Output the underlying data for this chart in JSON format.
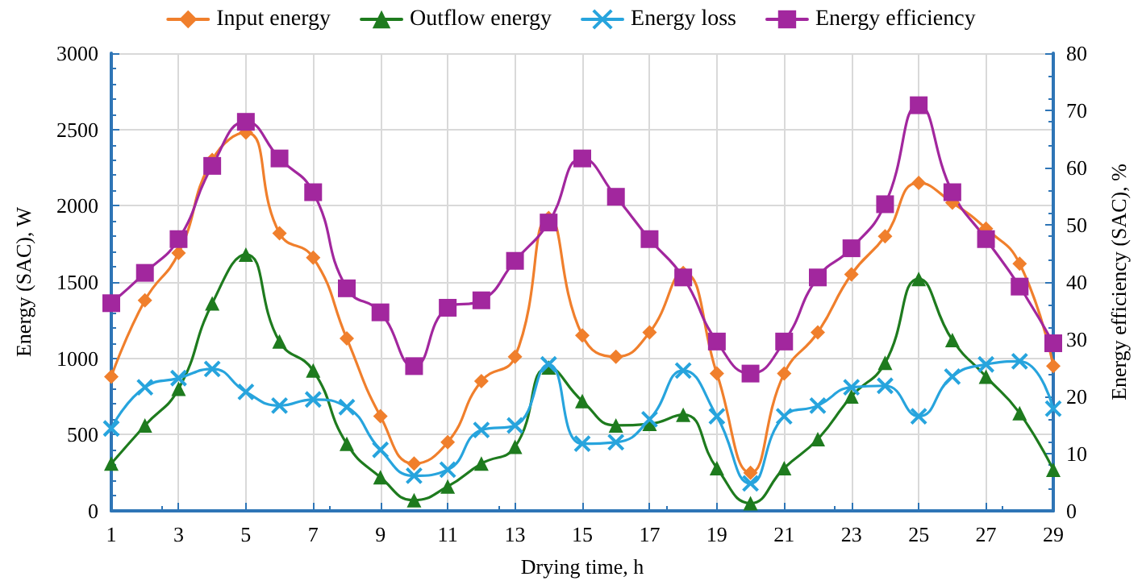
{
  "chart_data": {
    "type": "line",
    "xlabel": "Drying time, h",
    "ylabel": "Energy (SAC), W",
    "y2label": "Energy efficiency (SAC), %",
    "x": [
      1,
      2,
      3,
      4,
      5,
      6,
      7,
      8,
      9,
      10,
      11,
      12,
      13,
      14,
      15,
      16,
      17,
      18,
      19,
      20,
      21,
      22,
      23,
      24,
      25,
      26,
      27,
      28,
      29
    ],
    "series": [
      {
        "name": "Input energy",
        "color": "#f07f2c",
        "marker": "diamond",
        "values": [
          880,
          1380,
          1690,
          2300,
          2480,
          1820,
          1660,
          1130,
          620,
          310,
          450,
          850,
          1010,
          1920,
          1150,
          1010,
          1170,
          1560,
          900,
          250,
          900,
          1170,
          1550,
          1800,
          2150,
          2020,
          1850,
          1620,
          950
        ]
      },
      {
        "name": "Outflow energy",
        "color": "#1e7b1e",
        "marker": "triangle",
        "values": [
          310,
          560,
          800,
          1360,
          1680,
          1110,
          920,
          440,
          220,
          70,
          160,
          310,
          420,
          940,
          720,
          560,
          570,
          630,
          280,
          50,
          280,
          470,
          750,
          970,
          1520,
          1120,
          880,
          640,
          270
        ]
      },
      {
        "name": "Energy loss",
        "color": "#27a4dd",
        "marker": "cross",
        "values": [
          540,
          810,
          870,
          930,
          780,
          690,
          730,
          680,
          400,
          230,
          270,
          530,
          560,
          960,
          440,
          450,
          600,
          920,
          620,
          180,
          620,
          690,
          810,
          820,
          620,
          880,
          960,
          980,
          670
        ]
      },
      {
        "name": "Energy efficiency",
        "color": "#a2279e",
        "marker": "square",
        "axis": "y2",
        "values": [
          36.3,
          41.6,
          47.5,
          60.3,
          68,
          61.6,
          55.7,
          38.9,
          34.7,
          25.3,
          35.5,
          36.8,
          43.7,
          50.4,
          61.6,
          54.9,
          47.5,
          40.8,
          29.6,
          24,
          29.6,
          40.8,
          45.9,
          53.6,
          70.9,
          55.7,
          47.5,
          39.2,
          29.3
        ]
      }
    ],
    "xlim": [
      1,
      29
    ],
    "xticks": [
      1,
      3,
      5,
      7,
      9,
      11,
      13,
      15,
      17,
      19,
      21,
      23,
      25,
      27,
      29
    ],
    "ylim": [
      0,
      3000
    ],
    "yticks": [
      0,
      500,
      1000,
      1500,
      2000,
      2500,
      3000
    ],
    "y2lim": [
      0,
      80
    ],
    "y2ticks": [
      0,
      10,
      20,
      30,
      40,
      50,
      60,
      70,
      80
    ],
    "grid": true,
    "legend": "top",
    "line_style": "solid"
  }
}
